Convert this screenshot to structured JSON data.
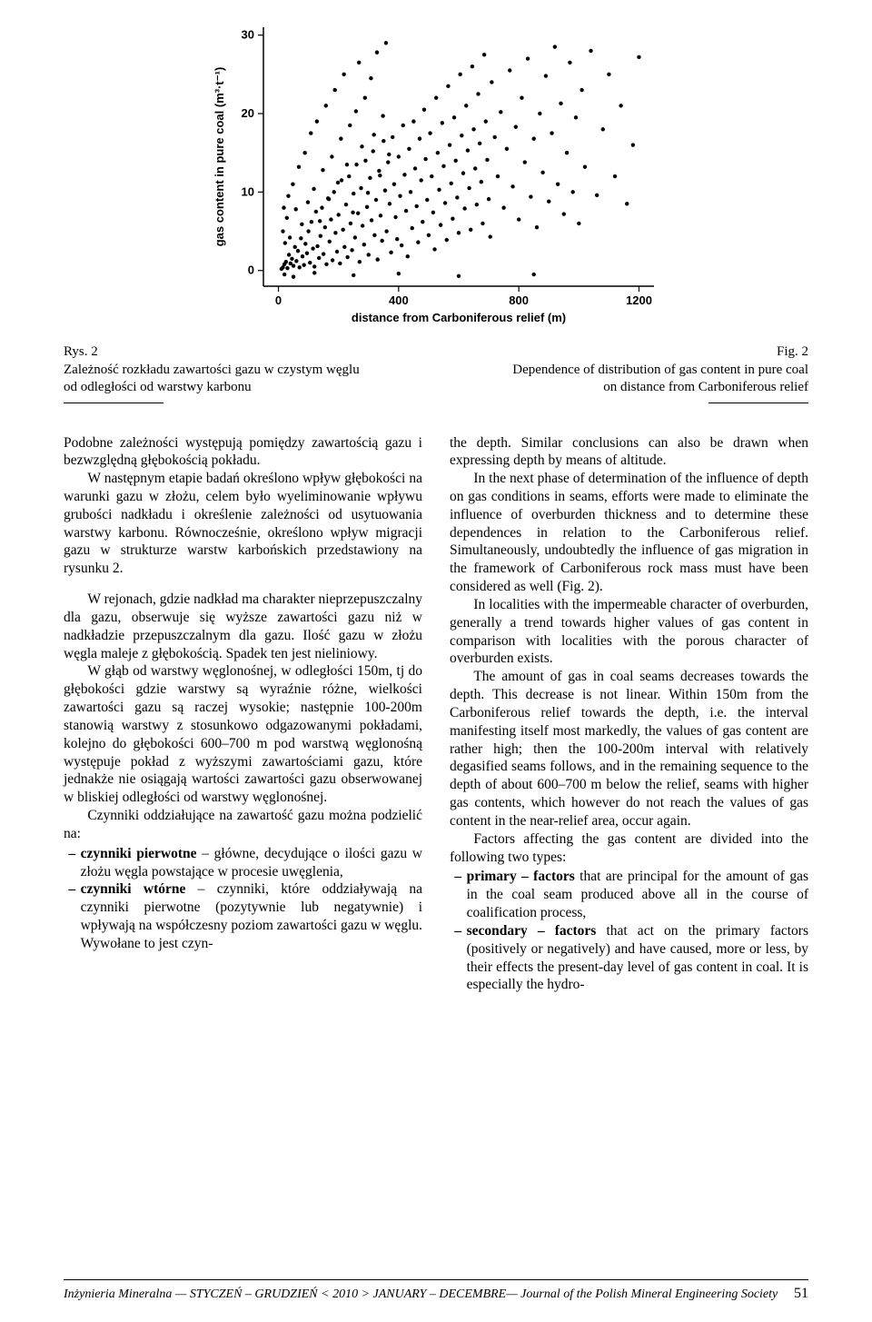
{
  "chart": {
    "type": "scatter",
    "xlabel": "distance from Carboniferous relief  (m)",
    "ylabel": "gas content in pure coal  (m³·t⁻¹)",
    "xlim": [
      -50,
      1250
    ],
    "ylim": [
      -2,
      31
    ],
    "xticks": [
      0,
      400,
      800,
      1200
    ],
    "yticks": [
      0,
      10,
      20,
      30
    ],
    "axis_fontsize": 13,
    "label_fontsize": 13,
    "marker": "circle",
    "marker_size": 2.2,
    "marker_color": "#000000",
    "background_color": "#ffffff",
    "axis_color": "#000000",
    "points": [
      [
        10,
        0.2
      ],
      [
        15,
        0.4
      ],
      [
        20,
        0.8
      ],
      [
        25,
        1.1
      ],
      [
        30,
        0.3
      ],
      [
        35,
        2.0
      ],
      [
        40,
        0.9
      ],
      [
        45,
        1.5
      ],
      [
        50,
        0.6
      ],
      [
        55,
        3.0
      ],
      [
        60,
        1.2
      ],
      [
        65,
        2.5
      ],
      [
        70,
        0.4
      ],
      [
        75,
        4.1
      ],
      [
        80,
        1.8
      ],
      [
        85,
        0.7
      ],
      [
        90,
        3.4
      ],
      [
        95,
        2.2
      ],
      [
        100,
        5.0
      ],
      [
        105,
        1.0
      ],
      [
        110,
        6.2
      ],
      [
        115,
        2.8
      ],
      [
        120,
        0.5
      ],
      [
        125,
        7.5
      ],
      [
        130,
        3.1
      ],
      [
        135,
        1.6
      ],
      [
        140,
        4.4
      ],
      [
        145,
        8.0
      ],
      [
        150,
        2.1
      ],
      [
        155,
        5.5
      ],
      [
        160,
        0.8
      ],
      [
        165,
        9.2
      ],
      [
        170,
        3.7
      ],
      [
        175,
        6.5
      ],
      [
        180,
        1.3
      ],
      [
        185,
        10.0
      ],
      [
        190,
        4.8
      ],
      [
        195,
        2.4
      ],
      [
        200,
        7.1
      ],
      [
        205,
        0.9
      ],
      [
        210,
        11.5
      ],
      [
        215,
        5.2
      ],
      [
        220,
        3.0
      ],
      [
        225,
        8.4
      ],
      [
        230,
        1.7
      ],
      [
        235,
        12.0
      ],
      [
        240,
        6.0
      ],
      [
        245,
        2.6
      ],
      [
        250,
        9.8
      ],
      [
        255,
        4.2
      ],
      [
        260,
        13.5
      ],
      [
        265,
        7.3
      ],
      [
        270,
        1.1
      ],
      [
        275,
        10.5
      ],
      [
        280,
        5.7
      ],
      [
        285,
        3.3
      ],
      [
        290,
        14.0
      ],
      [
        295,
        8.1
      ],
      [
        300,
        2.0
      ],
      [
        305,
        11.8
      ],
      [
        310,
        6.4
      ],
      [
        315,
        15.2
      ],
      [
        320,
        4.5
      ],
      [
        325,
        9.0
      ],
      [
        330,
        1.4
      ],
      [
        335,
        12.7
      ],
      [
        340,
        7.0
      ],
      [
        345,
        3.8
      ],
      [
        350,
        16.5
      ],
      [
        355,
        10.2
      ],
      [
        360,
        5.0
      ],
      [
        365,
        13.8
      ],
      [
        370,
        8.5
      ],
      [
        375,
        2.3
      ],
      [
        380,
        17.0
      ],
      [
        385,
        11.0
      ],
      [
        390,
        6.8
      ],
      [
        395,
        4.0
      ],
      [
        400,
        14.5
      ],
      [
        405,
        9.5
      ],
      [
        410,
        3.2
      ],
      [
        415,
        18.5
      ],
      [
        420,
        12.2
      ],
      [
        425,
        7.6
      ],
      [
        430,
        1.8
      ],
      [
        435,
        15.5
      ],
      [
        440,
        10.0
      ],
      [
        445,
        5.4
      ],
      [
        450,
        19.0
      ],
      [
        455,
        13.0
      ],
      [
        460,
        8.2
      ],
      [
        465,
        3.6
      ],
      [
        470,
        16.8
      ],
      [
        475,
        11.5
      ],
      [
        480,
        6.2
      ],
      [
        485,
        20.5
      ],
      [
        490,
        14.2
      ],
      [
        495,
        9.0
      ],
      [
        500,
        4.5
      ],
      [
        505,
        17.5
      ],
      [
        510,
        12.0
      ],
      [
        515,
        7.4
      ],
      [
        520,
        2.7
      ],
      [
        525,
        22.0
      ],
      [
        530,
        15.0
      ],
      [
        535,
        10.3
      ],
      [
        540,
        5.8
      ],
      [
        545,
        18.8
      ],
      [
        550,
        13.3
      ],
      [
        555,
        8.6
      ],
      [
        560,
        3.9
      ],
      [
        565,
        23.5
      ],
      [
        570,
        16.0
      ],
      [
        575,
        11.1
      ],
      [
        580,
        6.6
      ],
      [
        585,
        19.5
      ],
      [
        590,
        14.0
      ],
      [
        595,
        9.3
      ],
      [
        600,
        4.8
      ],
      [
        605,
        25.0
      ],
      [
        610,
        17.2
      ],
      [
        615,
        12.4
      ],
      [
        620,
        7.9
      ],
      [
        625,
        21.0
      ],
      [
        630,
        15.3
      ],
      [
        635,
        10.5
      ],
      [
        640,
        5.2
      ],
      [
        645,
        26.0
      ],
      [
        650,
        18.0
      ],
      [
        655,
        13.0
      ],
      [
        660,
        8.4
      ],
      [
        665,
        22.5
      ],
      [
        670,
        16.2
      ],
      [
        675,
        11.3
      ],
      [
        680,
        6.0
      ],
      [
        685,
        27.5
      ],
      [
        690,
        19.0
      ],
      [
        695,
        14.1
      ],
      [
        700,
        9.1
      ],
      [
        705,
        4.3
      ],
      [
        710,
        24.0
      ],
      [
        720,
        17.0
      ],
      [
        730,
        12.0
      ],
      [
        740,
        20.2
      ],
      [
        750,
        8.0
      ],
      [
        760,
        15.5
      ],
      [
        770,
        25.5
      ],
      [
        780,
        10.7
      ],
      [
        790,
        18.3
      ],
      [
        800,
        6.5
      ],
      [
        810,
        22.0
      ],
      [
        820,
        13.8
      ],
      [
        830,
        27.0
      ],
      [
        840,
        9.4
      ],
      [
        850,
        16.8
      ],
      [
        860,
        5.5
      ],
      [
        870,
        20.0
      ],
      [
        880,
        12.5
      ],
      [
        890,
        24.8
      ],
      [
        900,
        8.8
      ],
      [
        910,
        17.5
      ],
      [
        920,
        28.5
      ],
      [
        930,
        11.0
      ],
      [
        940,
        21.3
      ],
      [
        950,
        7.2
      ],
      [
        960,
        15.0
      ],
      [
        970,
        26.5
      ],
      [
        980,
        10.0
      ],
      [
        990,
        19.5
      ],
      [
        1000,
        6.0
      ],
      [
        1010,
        23.0
      ],
      [
        1020,
        13.2
      ],
      [
        1040,
        28.0
      ],
      [
        1060,
        9.6
      ],
      [
        1080,
        18.0
      ],
      [
        1100,
        25.0
      ],
      [
        1120,
        12.0
      ],
      [
        1140,
        21.0
      ],
      [
        1160,
        8.5
      ],
      [
        1180,
        16.0
      ],
      [
        1200,
        27.2
      ],
      [
        15,
        5.0
      ],
      [
        18,
        8.0
      ],
      [
        22,
        3.5
      ],
      [
        28,
        6.7
      ],
      [
        33,
        9.5
      ],
      [
        38,
        4.2
      ],
      [
        48,
        11.0
      ],
      [
        58,
        7.8
      ],
      [
        68,
        13.2
      ],
      [
        78,
        5.9
      ],
      [
        88,
        15.0
      ],
      [
        98,
        8.7
      ],
      [
        108,
        17.5
      ],
      [
        118,
        10.4
      ],
      [
        128,
        19.0
      ],
      [
        138,
        6.3
      ],
      [
        148,
        12.8
      ],
      [
        158,
        21.0
      ],
      [
        168,
        9.1
      ],
      [
        178,
        14.5
      ],
      [
        188,
        23.0
      ],
      [
        198,
        11.2
      ],
      [
        208,
        16.8
      ],
      [
        218,
        25.0
      ],
      [
        228,
        13.5
      ],
      [
        238,
        18.5
      ],
      [
        248,
        7.4
      ],
      [
        258,
        20.3
      ],
      [
        268,
        26.5
      ],
      [
        278,
        15.8
      ],
      [
        288,
        22.0
      ],
      [
        298,
        9.9
      ],
      [
        308,
        24.5
      ],
      [
        318,
        17.3
      ],
      [
        328,
        27.8
      ],
      [
        338,
        12.1
      ],
      [
        348,
        19.7
      ],
      [
        358,
        29.0
      ],
      [
        368,
        14.8
      ],
      [
        20,
        -0.5
      ],
      [
        50,
        -0.8
      ],
      [
        120,
        -0.3
      ],
      [
        250,
        -0.6
      ],
      [
        400,
        -0.4
      ],
      [
        600,
        -0.7
      ],
      [
        850,
        -0.5
      ]
    ]
  },
  "caption_left": {
    "line1": "Rys. 2",
    "line2": "Zależność rozkładu zawartości gazu w czystym węglu",
    "line3": "od odległości od warstwy karbonu"
  },
  "caption_right": {
    "line1": "Fig. 2",
    "line2": "Dependence of distribution of gas content in pure coal",
    "line3": "on distance from Carboniferous relief"
  },
  "left_col": {
    "p1": "Podobne zależności występują pomiędzy zawartością gazu i bezwzględną głębokością pokładu.",
    "p2": "W następnym etapie badań określono wpływ głębokości na warunki gazu w złożu, celem było wyeliminowanie wpływu grubości nadkładu i określenie zależności od usytuowania warstwy karbonu. Równocześnie, określono wpływ migracji gazu w strukturze warstw karbońskich przedstawiony na rysunku 2.",
    "p3": "W rejonach, gdzie nadkład ma charakter nieprzepuszczalny dla gazu, obserwuje się wyższe zawartości gazu niż w nadkładzie przepuszczalnym dla gazu. Ilość gazu w złożu węgla maleje z głębokością. Spadek ten jest nieliniowy.",
    "p4": "W głąb od warstwy węglonośnej, w odległości 150m, tj do głębokości gdzie warstwy są wyraźnie różne, wielkości zawartości gazu są raczej wysokie; następnie 100-200m stanowią warstwy z stosunkowo odgazowanymi pokładami, kolejno do głębokości 600–700 m pod warstwą węglonośną występuje pokład z wyższymi zawartościami gazu, które jednakże nie osiągają wartości zawartości gazu obserwowanej w bliskiej odległości od warstwy węglonośnej.",
    "p5": "Czynniki oddziałujące na zawartość gazu można podzielić na:",
    "b1_lead": "czynniki pierwotne",
    "b1_rest": " – główne, decydujące o ilości gazu w złożu węgla powstające w procesie uwęglenia,",
    "b2_lead": "czynniki wtórne",
    "b2_rest": " – czynniki, które oddziaływają na czynniki pierwotne (pozytywnie lub negatywnie) i wpływają na współczesny poziom zawartości gazu w węglu. Wywołane to jest czyn-"
  },
  "right_col": {
    "p1": "the depth. Similar conclusions can also be drawn when expressing depth by means of altitude.",
    "p2": "In the next phase of determination of the influence of depth on gas conditions in seams, efforts were made to eliminate the influence of overburden thickness and to determine these dependences in relation to the Carboniferous relief. Simultaneously, undoubtedly the influence of gas migration in the framework of Carboniferous rock mass must have been considered as well (Fig. 2).",
    "p3": "In localities with the impermeable character of overburden, generally a trend towards higher values of gas content in comparison with localities with the porous character of overburden exists.",
    "p4": "The amount of gas in coal seams decreases towards the depth. This decrease is not linear. Within 150m from the Carboniferous relief towards the depth, i.e. the interval manifesting itself most markedly, the values of gas content are rather high; then the 100-200m interval with relatively degasified seams follows, and in the remaining sequence to the depth of about 600–700 m below the relief, seams with higher gas contents, which however do not reach the values of gas content in the near-relief area, occur again.",
    "p5": "Factors affecting the gas content are divided into the following two types:",
    "b1_lead": "primary – factors",
    "b1_rest": " that are principal for the amount of gas in the coal seam produced above all in the course of coalification process,",
    "b2_lead": "secondary – factors",
    "b2_rest": " that act on the primary factors (positively or negatively) and have caused, more or less, by their effects the present-day level of gas content in coal. It is especially the hydro-"
  },
  "footer": {
    "text": "Inżynieria Mineralna — STYCZEŃ – GRUDZIEŃ < 2010 > JANUARY – DECEMBRE— Journal of the Polish Mineral Engineering Society",
    "page": "51"
  }
}
